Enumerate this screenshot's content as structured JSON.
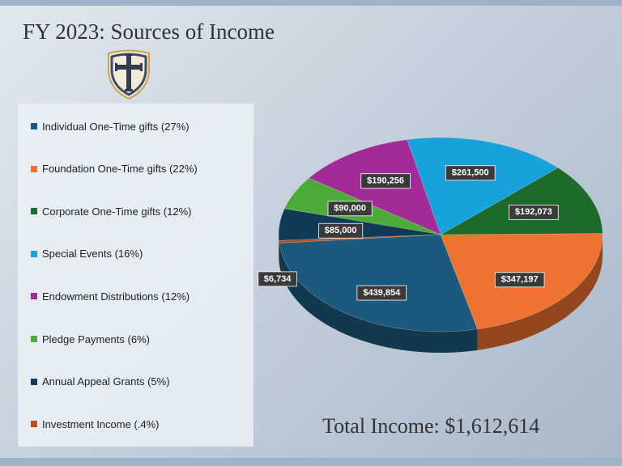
{
  "title": "FY 2023: Sources of Income",
  "logo": {
    "name": "shield-cross-logo",
    "colors": {
      "shield": "#f4ead6",
      "border": "#c8a24a",
      "inner": "#3d4e66",
      "cross": "#2f3d52"
    }
  },
  "total_label": "Total Income: $1,612,614",
  "chart_data": {
    "type": "pie",
    "style": "3d",
    "legend_position": "left",
    "slices": [
      {
        "label": "Individual One-Time gifts (27%)",
        "value": 439854,
        "value_label": "$439,854",
        "color": "#1b5a7e"
      },
      {
        "label": "Foundation One-Time gifts (22%)",
        "value": 347197,
        "value_label": "$347,197",
        "color": "#ee7330"
      },
      {
        "label": "Corporate One-Time gifts (12%)",
        "value": 192073,
        "value_label": "$192,073",
        "color": "#1e6a2b"
      },
      {
        "label": "Special Events (16%)",
        "value": 261500,
        "value_label": "$261,500",
        "color": "#18a2dc"
      },
      {
        "label": "Endowment Distributions (12%)",
        "value": 190256,
        "value_label": "$190,256",
        "color": "#a32b98"
      },
      {
        "label": "Pledge Payments (6%)",
        "value": 90000,
        "value_label": "$90,000",
        "color": "#4dac39"
      },
      {
        "label": "Annual Appeal Grants (5%)",
        "value": 85000,
        "value_label": "$85,000",
        "color": "#103a55"
      },
      {
        "label": "Investment Income (.4%)",
        "value": 6734,
        "value_label": "$6,734",
        "color": "#b8501c"
      }
    ]
  }
}
